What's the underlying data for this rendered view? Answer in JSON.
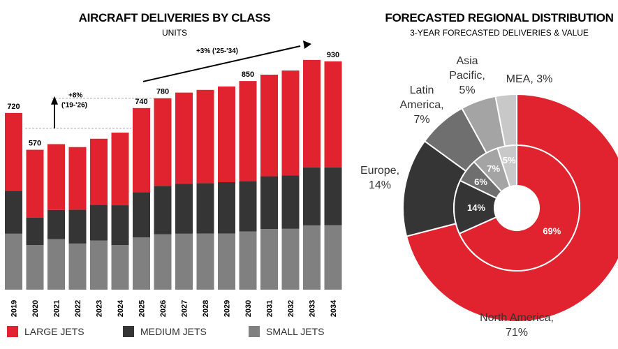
{
  "chart_data": [
    {
      "type": "bar",
      "stacked": true,
      "title": "AIRCRAFT DELIVERIES BY CLASS",
      "subtitle": "UNITS",
      "categories": [
        "2019",
        "2020",
        "2021",
        "2022",
        "2023",
        "2024",
        "2025",
        "2026",
        "2027",
        "2028",
        "2029",
        "2030",
        "2031",
        "2032",
        "2033",
        "2034"
      ],
      "series": [
        {
          "name": "SMALL JETS",
          "color": "#808080",
          "values": [
            228,
            182,
            206,
            188,
            200,
            182,
            213,
            226,
            228,
            229,
            229,
            237,
            247,
            248,
            262,
            263
          ]
        },
        {
          "name": "MEDIUM JETS",
          "color": "#353535",
          "values": [
            175,
            111,
            119,
            138,
            146,
            162,
            184,
            197,
            203,
            205,
            209,
            206,
            215,
            218,
            236,
            235
          ]
        },
        {
          "name": "LARGE JETS",
          "color": "#e0232e",
          "values": [
            317,
            277,
            268,
            255,
            269,
            296,
            343,
            357,
            372,
            380,
            390,
            407,
            414,
            427,
            438,
            432
          ]
        }
      ],
      "totals": [
        {
          "index": 0,
          "label": "720"
        },
        {
          "index": 1,
          "label": "570"
        },
        {
          "index": 6,
          "label": "740"
        },
        {
          "index": 7,
          "label": "780"
        },
        {
          "index": 11,
          "label": "850"
        },
        {
          "index": 15,
          "label": "930"
        }
      ],
      "annotations": {
        "growth_short": {
          "line1": "+8%",
          "line2": "('19-'26)"
        },
        "growth_long": "+3% ('25-'34)"
      },
      "ylim": [
        0,
        950
      ],
      "legend": [
        "LARGE JETS",
        "MEDIUM JETS",
        "SMALL JETS"
      ]
    },
    {
      "type": "pie",
      "title": "FORECASTED REGIONAL DISTRIBUTION",
      "subtitle": "3-YEAR FORECASTED DELIVERIES & VALUE",
      "outer_ring": [
        {
          "name": "North America",
          "value": 71,
          "label_line1": "North America,",
          "label_line2": "71%",
          "color": "#e0232e"
        },
        {
          "name": "Europe",
          "value": 14,
          "label_line1": "Europe,",
          "label_line2": "14%",
          "color": "#353535"
        },
        {
          "name": "Latin America",
          "value": 7,
          "label_line1": "Latin",
          "label_line2": "America,",
          "label_line3": "7%",
          "color": "#6f6f6f"
        },
        {
          "name": "Asia Pacific",
          "value": 5,
          "label_line1": "Asia",
          "label_line2": "Pacific,",
          "label_line3": "5%",
          "color": "#a4a4a4"
        },
        {
          "name": "MEA",
          "value": 3,
          "label_line1": "MEA, 3%",
          "color": "#c8c8c8"
        }
      ],
      "inner_ring": [
        {
          "name": "North America",
          "value": 69,
          "label": "69%",
          "color": "#e0232e"
        },
        {
          "name": "Europe",
          "value": 14,
          "label": "14%",
          "color": "#353535"
        },
        {
          "name": "Latin America",
          "value": 6,
          "label": "6%",
          "color": "#6f6f6f"
        },
        {
          "name": "Asia Pacific",
          "value": 7,
          "label": "7%",
          "color": "#a4a4a4"
        },
        {
          "name": "MEA",
          "value": 5,
          "label": "5%",
          "color": "#c8c8c8"
        }
      ]
    }
  ]
}
